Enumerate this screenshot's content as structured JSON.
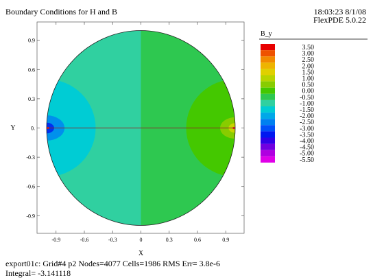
{
  "header": {
    "title": "Boundary Conditions for H and B",
    "time_date": "18:03:23 8/1/08",
    "version": "FlexPDE 5.0.22"
  },
  "footer": {
    "line1": "export01c:  Grid#4  p2  Nodes=4077 Cells=1986 RMS Err= 3.8e-6",
    "line2": "Integral= -3.141118"
  },
  "chart_data": {
    "type": "heatmap",
    "title": "",
    "xlabel": "X",
    "ylabel": "Y",
    "xlim": [
      -1.05,
      1.05
    ],
    "ylim": [
      -1.05,
      1.05
    ],
    "x_ticks": [
      -0.9,
      -0.6,
      -0.3,
      0,
      0.3,
      0.6,
      0.9
    ],
    "x_tick_labels": [
      "-0.9",
      "-0.6",
      "-0.3",
      "0",
      "0.3",
      "0.6",
      "0.9"
    ],
    "y_ticks": [
      0.9,
      0.6,
      0.3,
      0,
      -0.3,
      -0.6,
      -0.9
    ],
    "y_tick_labels": [
      "0.9",
      "0.6",
      "0.3",
      "0.",
      "-0.3",
      "-0.6",
      "-0.9"
    ],
    "legend": {
      "title": "B_y",
      "placement": "right",
      "levels": [
        "3.50",
        "3.00",
        "2.50",
        "2.00",
        "1.50",
        "1.00",
        "0.50",
        "0.00",
        "-0.50",
        "-1.00",
        "-1.50",
        "-2.00",
        "-2.50",
        "-3.00",
        "-3.50",
        "-4.00",
        "-4.50",
        "-5.00",
        "-5.50"
      ],
      "colors": [
        "#e80000",
        "#ee5200",
        "#f28a00",
        "#eeb400",
        "#e0d000",
        "#b8d400",
        "#88cc00",
        "#44c800",
        "#2ec850",
        "#30d0a0",
        "#00ccd4",
        "#00a8e8",
        "#0080f0",
        "#0050f8",
        "#0018f0",
        "#3000e8",
        "#7000e0",
        "#b000e0",
        "#e000e8"
      ]
    },
    "regions": [
      {
        "desc": "left half",
        "x_range": [
          -1,
          0
        ],
        "value": -1.0
      },
      {
        "desc": "right half",
        "x_range": [
          0,
          1
        ],
        "value": -0.5
      },
      {
        "desc": "left edge contour",
        "center": [
          -1,
          0
        ],
        "value": -1.5
      },
      {
        "desc": "left edge pole",
        "center": [
          -1,
          0
        ],
        "value": -2.5
      },
      {
        "desc": "right edge contour",
        "center": [
          1,
          0
        ],
        "value": 0.0
      },
      {
        "desc": "right edge pole",
        "center": [
          1,
          0
        ],
        "value": 1.0
      }
    ],
    "circle_radius": 1.0,
    "grid": false
  }
}
